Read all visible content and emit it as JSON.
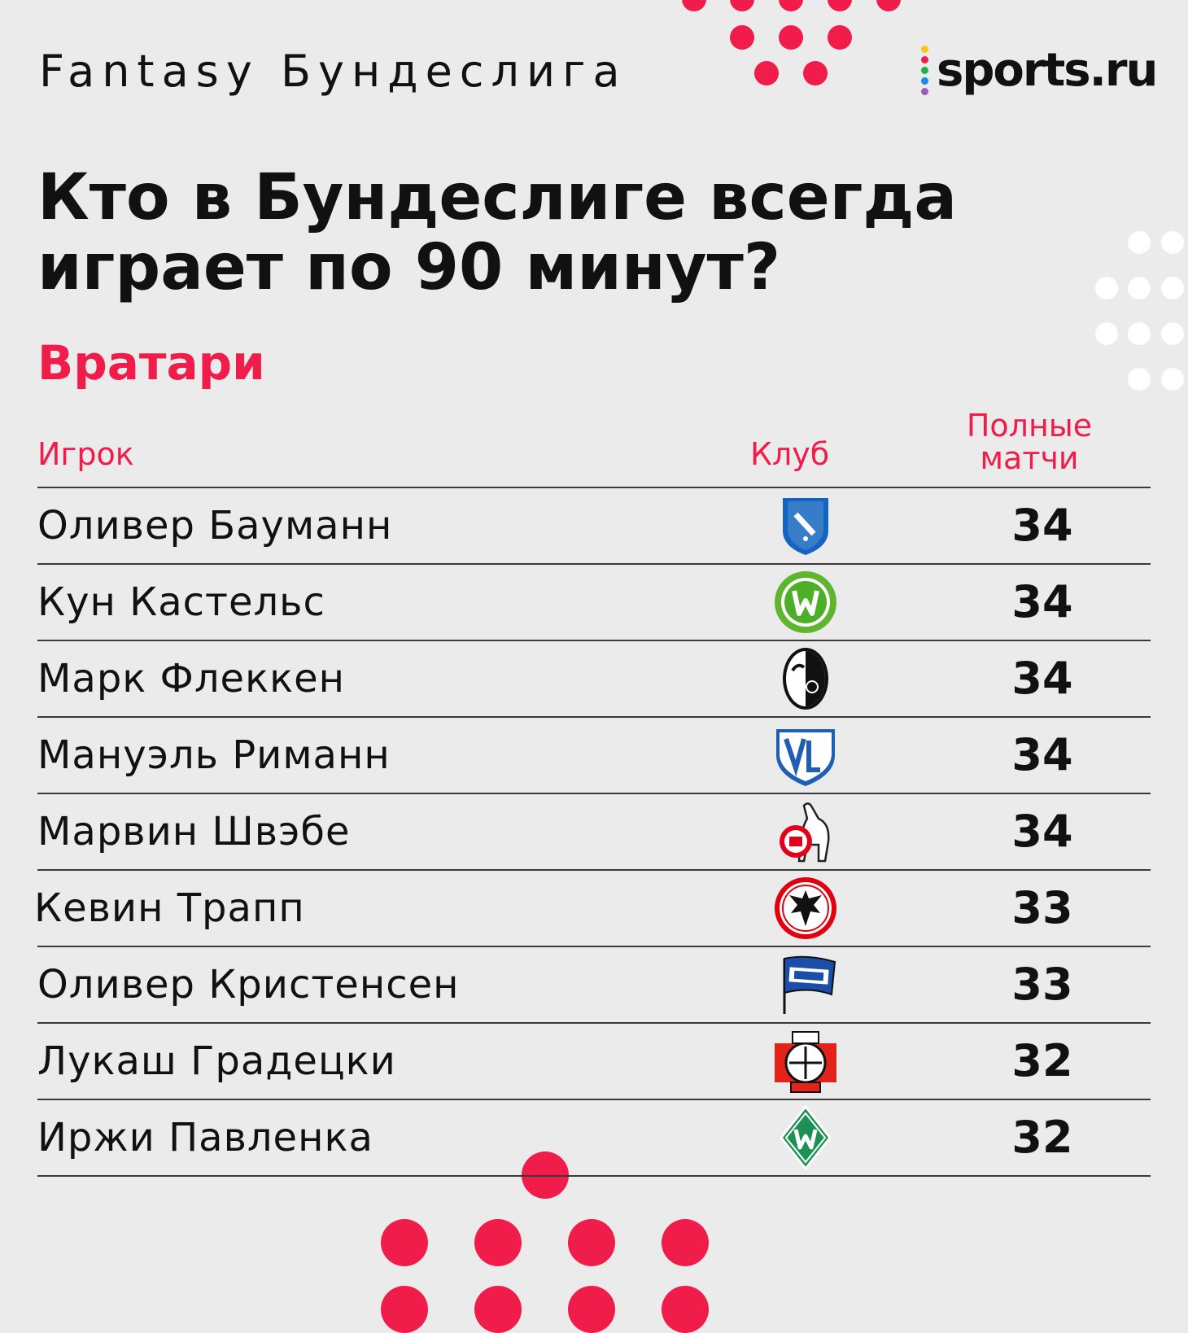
{
  "header": {
    "brand": "Fantasy Бундеслига",
    "logo_text": "sports.ru"
  },
  "title": "Кто в Бундеслиге всегда играет по 90 минут?",
  "section": "Вратари",
  "columns": {
    "player": "Игрок",
    "club": "Клуб",
    "full_matches_line1": "Полные",
    "full_matches_line2": "матчи"
  },
  "rows": [
    {
      "player": "Оливер Бауманн",
      "club_icon": "hoffenheim-crest-icon",
      "matches": "34"
    },
    {
      "player": "Кун Кастельс",
      "club_icon": "wolfsburg-crest-icon",
      "matches": "34"
    },
    {
      "player": "Марк Флеккен",
      "club_icon": "freiburg-crest-icon",
      "matches": "34"
    },
    {
      "player": "Мануэль Риманн",
      "club_icon": "bochum-crest-icon",
      "matches": "34"
    },
    {
      "player": "Марвин Швэбе",
      "club_icon": "koln-crest-icon",
      "matches": "34"
    },
    {
      "player": "Кевин Трапп",
      "club_icon": "eintracht-frankfurt-crest-icon",
      "matches": "33"
    },
    {
      "player": "Оливер Кристенсен",
      "club_icon": "hertha-crest-icon",
      "matches": "33"
    },
    {
      "player": "Лукаш Градецки",
      "club_icon": "leverkusen-crest-icon",
      "matches": "32"
    },
    {
      "player": "Иржи Павленка",
      "club_icon": "werder-crest-icon",
      "matches": "32"
    }
  ],
  "colors": {
    "accent": "#f01c4a",
    "background": "#ebebeb",
    "text": "#111111"
  }
}
